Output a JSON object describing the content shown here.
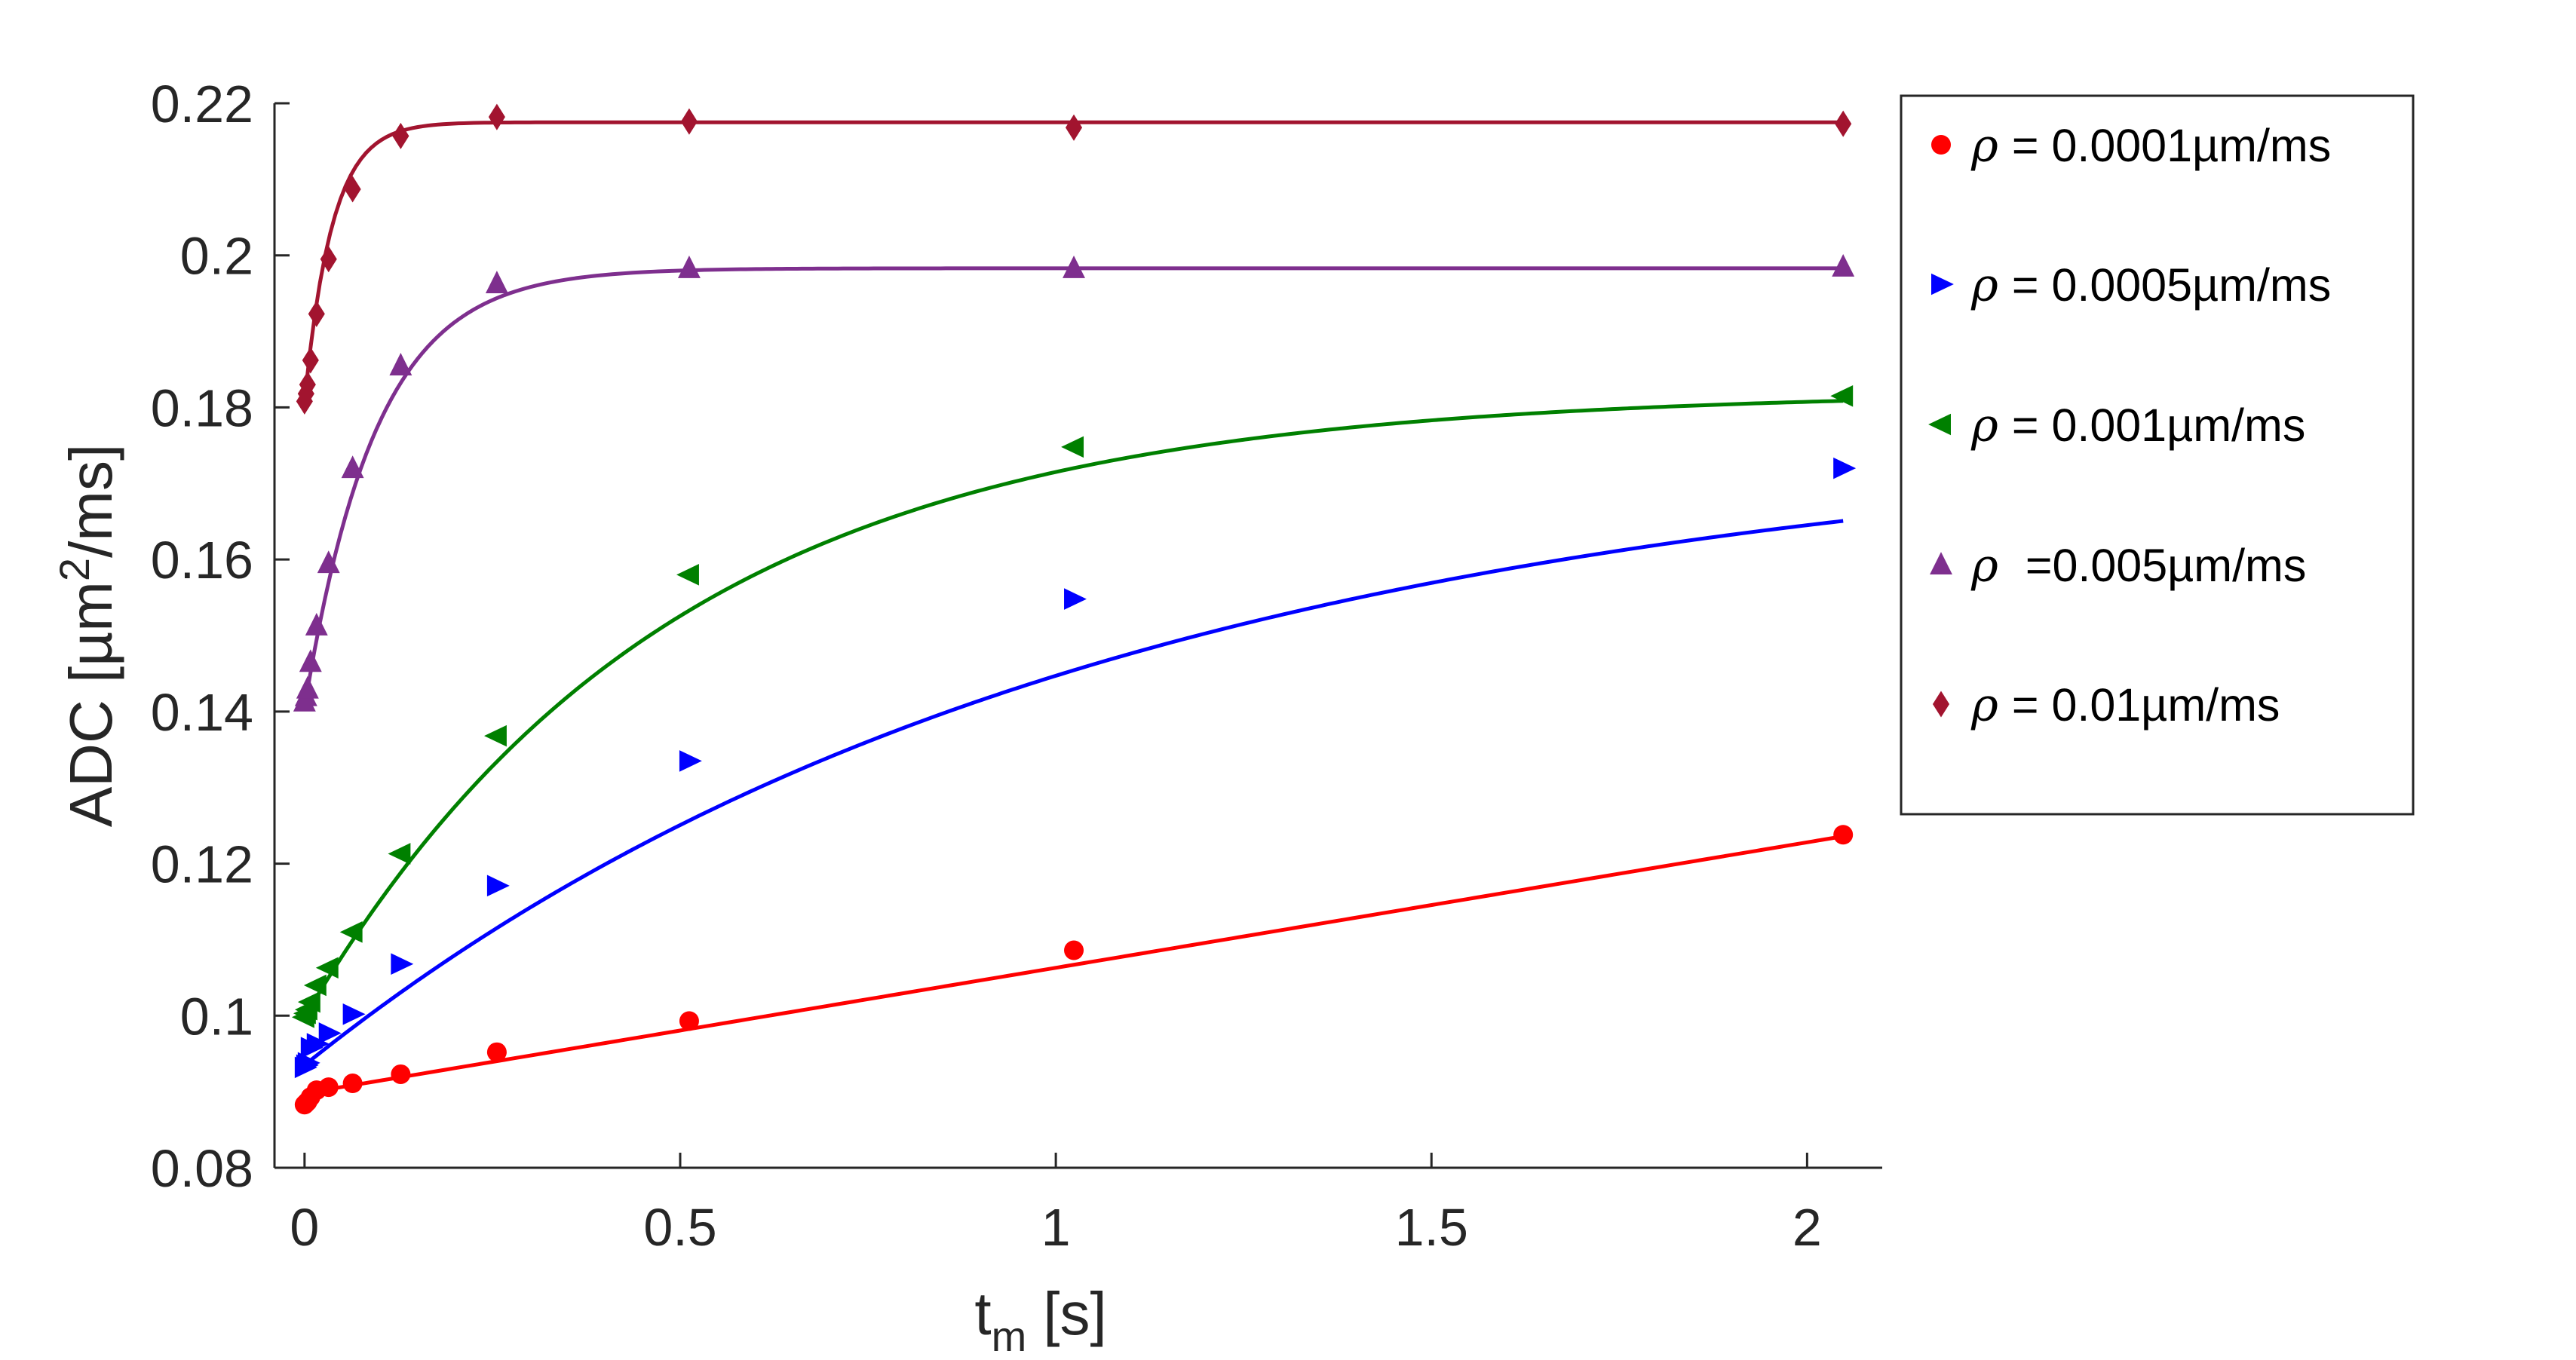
{
  "chart_data": {
    "type": "scatter",
    "xlabel": "t",
    "xlabel_sub": "m",
    "xlabel_unit": "[s]",
    "ylabel_prefix": "ADC [µm",
    "ylabel_sup": "2",
    "ylabel_suffix": "/ms]",
    "xlim": [
      -0.04,
      2.1
    ],
    "ylim": [
      0.08,
      0.22
    ],
    "xticks": [
      0,
      0.5,
      1,
      1.5,
      2
    ],
    "xtick_labels": [
      "0",
      "0.5",
      "1",
      "1.5",
      "2"
    ],
    "yticks": [
      0.08,
      0.1,
      0.12,
      0.14,
      0.16,
      0.18,
      0.2,
      0.22
    ],
    "ytick_labels": [
      "0.08",
      "0.1",
      "0.12",
      "0.14",
      "0.16",
      "0.18",
      "0.2",
      "0.22"
    ],
    "grid": false,
    "legend_position": "right",
    "series": [
      {
        "name": "= 0.0001µm/ms",
        "color": "#ff0000",
        "marker": "circle",
        "x": [
          0,
          0.002,
          0.004,
          0.008,
          0.016,
          0.032,
          0.064,
          0.128,
          0.256,
          0.512,
          1.024,
          2.048
        ],
        "y": [
          0.0883,
          0.0885,
          0.0887,
          0.0893,
          0.0902,
          0.0906,
          0.0911,
          0.0923,
          0.0952,
          0.0993,
          0.1086,
          0.1238
        ],
        "fit": {
          "type": "line",
          "a": 0.0898,
          "b": 0.0165
        }
      },
      {
        "name": "= 0.0005µm/ms",
        "color": "#0000ff",
        "marker": "triangle-right",
        "x": [
          0,
          0.002,
          0.004,
          0.008,
          0.016,
          0.032,
          0.064,
          0.128,
          0.256,
          0.512,
          1.024,
          2.048
        ],
        "y": [
          0.0932,
          0.0935,
          0.0938,
          0.0958,
          0.0963,
          0.0977,
          0.1002,
          0.1068,
          0.1171,
          0.1335,
          0.1548,
          0.172
        ],
        "fit": {
          "type": "exp",
          "a": 0.0935,
          "b": 0.0835,
          "k": 0.95
        }
      },
      {
        "name": "= 0.001µm/ms",
        "color": "#008000",
        "marker": "triangle-left",
        "x": [
          0,
          0.002,
          0.004,
          0.008,
          0.016,
          0.032,
          0.064,
          0.128,
          0.256,
          0.512,
          1.024,
          2.048
        ],
        "y": [
          0.0998,
          0.1003,
          0.1008,
          0.1018,
          0.104,
          0.1063,
          0.111,
          0.1213,
          0.1368,
          0.158,
          0.1748,
          0.1815
        ],
        "fit": {
          "type": "exp",
          "a": 0.0998,
          "b": 0.0823,
          "k": 2.05
        }
      },
      {
        "name": "=0.005µm/ms",
        "color": "#7e2f8e",
        "marker": "triangle-up",
        "x": [
          0,
          0.002,
          0.004,
          0.008,
          0.016,
          0.032,
          0.064,
          0.128,
          0.256,
          0.512,
          1.024,
          2.048
        ],
        "y": [
          0.1413,
          0.142,
          0.143,
          0.1465,
          0.1513,
          0.1595,
          0.172,
          0.1855,
          0.1963,
          0.1983,
          0.1983,
          0.1985
        ],
        "fit": {
          "type": "exp",
          "a": 0.1405,
          "b": 0.0578,
          "k": 10.5
        }
      },
      {
        "name": "= 0.01µm/ms",
        "color": "#a2142f",
        "marker": "diamond",
        "x": [
          0,
          0.002,
          0.004,
          0.008,
          0.016,
          0.032,
          0.064,
          0.128,
          0.256,
          0.512,
          1.024,
          2.048
        ],
        "y": [
          0.1808,
          0.1818,
          0.183,
          0.1862,
          0.1923,
          0.1995,
          0.2087,
          0.2157,
          0.2182,
          0.2176,
          0.2168,
          0.2173
        ],
        "fit": {
          "type": "exp",
          "a": 0.1808,
          "b": 0.0367,
          "k": 27
        }
      }
    ]
  }
}
